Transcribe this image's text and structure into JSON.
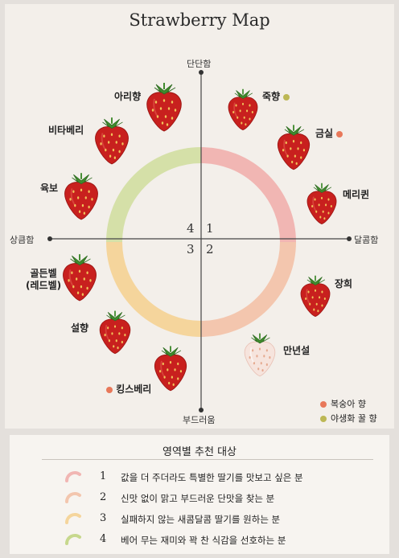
{
  "title": "Strawberry Map",
  "axes": {
    "top": "단단함",
    "bottom": "부드러움",
    "left": "상큼함",
    "right": "달콤함"
  },
  "quadrants": [
    "1",
    "2",
    "3",
    "4"
  ],
  "colors": {
    "q1": "#f1b6b3",
    "q2": "#f3c6ae",
    "q3": "#f5d59c",
    "q4": "#d5e0a8",
    "peach": "#e8785a",
    "honey": "#bdb855"
  },
  "berries": [
    {
      "name": "아리향",
      "dot": null,
      "style": "red"
    },
    {
      "name": "죽향",
      "dot": "honey",
      "style": "red"
    },
    {
      "name": "비타베리",
      "dot": null,
      "style": "red"
    },
    {
      "name": "금실",
      "dot": "peach",
      "style": "red"
    },
    {
      "name": "육보",
      "dot": null,
      "style": "red"
    },
    {
      "name": "메리퀸",
      "dot": null,
      "style": "red"
    },
    {
      "name": "골든벨",
      "sub": "(레드벨)",
      "dot": null,
      "style": "red"
    },
    {
      "name": "장희",
      "dot": null,
      "style": "red"
    },
    {
      "name": "설향",
      "dot": null,
      "style": "red"
    },
    {
      "name": "만년설",
      "dot": null,
      "style": "white"
    },
    {
      "name": "킹스베리",
      "dot": "peach",
      "style": "red"
    }
  ],
  "legend": [
    {
      "label": "복숭아 향",
      "color": "peach"
    },
    {
      "label": "야생화 꿀 향",
      "color": "honey"
    }
  ],
  "recommendation": {
    "title": "영역별 추천 대상",
    "items": [
      {
        "num": "1",
        "text": "값을 더 주더라도 특별한 딸기를 맛보고 싶은 분",
        "color": "#f1b6b3"
      },
      {
        "num": "2",
        "text": "신맛 없이 맑고 부드러운 단맛을 찾는 분",
        "color": "#f3c6ae"
      },
      {
        "num": "3",
        "text": "실패하지 않는 새콤달콤 딸기를 원하는 분",
        "color": "#f5d59c"
      },
      {
        "num": "4",
        "text": "베어 무는 재미와 꽉 찬 식감을 선호하는 분",
        "color": "#c7d88d"
      }
    ]
  }
}
